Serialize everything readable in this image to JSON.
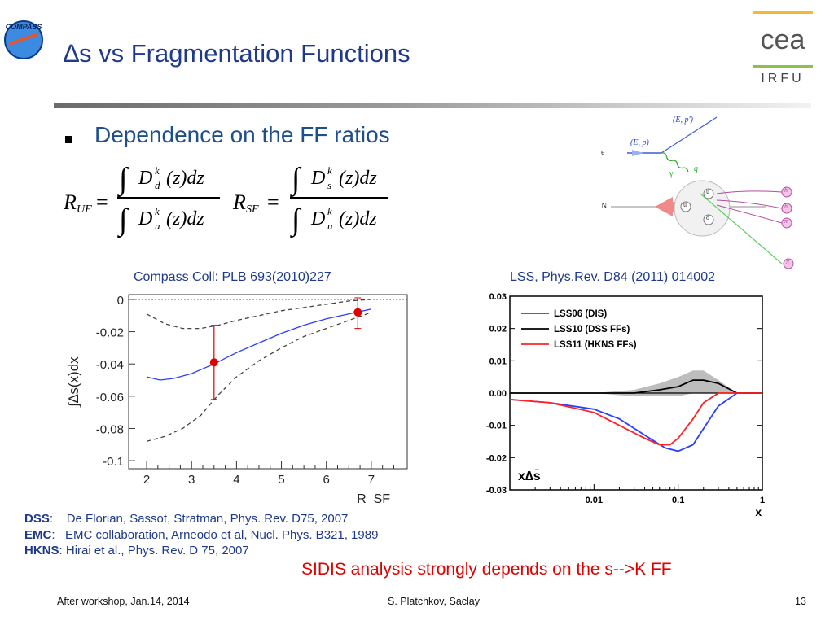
{
  "slide": {
    "title": "∆s vs Fragmentation Functions",
    "bullet": "Dependence on the FF ratios",
    "logo_left_text": "COMPASS",
    "logo_right_text": "IRFU",
    "logo_right_brand": "cea",
    "caption_left_prefix": "Compass Coll: ",
    "caption_left_ref": "PLB 693(2010)227",
    "caption_right": "LSS, Phys.Rev. D84 (2011) 014002",
    "refs": [
      {
        "key": "DSS",
        "sep": ":",
        "text": "De Florian, Sassot, Stratman, Phys. Rev. D75, 2007"
      },
      {
        "key": "EMC",
        "sep": ":",
        "text": "EMC collaboration, Arneodo et al, Nucl. Phys. B321, 1989"
      },
      {
        "key": "HKNS",
        "sep": ":",
        "text": "Hirai et al., Phys. Rev. D 75, 2007"
      }
    ],
    "conclusion": "SIDIS analysis strongly depends on the s-->K FF",
    "footer_left": "After workshop, Jan.14, 2014",
    "footer_center": "S. Platchkov, Saclay",
    "page_number": "13"
  },
  "formulas": {
    "ruf_label": "R",
    "ruf_sub": "UF",
    "rsf_label": "R",
    "rsf_sub": "SF",
    "equals": "=",
    "num_d": "D",
    "sub_d": "d",
    "sub_s": "s",
    "sub_u": "u",
    "sup_k": "k",
    "zdz": "(z)dz"
  },
  "diagram": {
    "labels": [
      "(E, p′)",
      "(E, p)",
      "e",
      "N",
      "γ",
      "q",
      "u",
      "d",
      "u",
      "h",
      "h",
      "π",
      "π"
    ]
  },
  "colors": {
    "title_blue": "#1f3a8a",
    "accent_red": "#e00000",
    "blue_curve": "#2a3fff",
    "red_curve": "#ff2222",
    "cea_green": "#8bc34a",
    "cea_orange": "#f7b733"
  },
  "chart_data": [
    {
      "type": "line",
      "xlabel": "R_SF",
      "ylabel": "∫∆s(x)dx",
      "xlim": [
        1.6,
        7.8
      ],
      "ylim": [
        -0.105,
        0.0
      ],
      "xticks": [
        "2",
        "3",
        "4",
        "5",
        "6",
        "7"
      ],
      "yticks": [
        "0",
        "-0.02",
        "-0.04",
        "-0.06",
        "-0.08",
        "-0.1"
      ],
      "grid": false,
      "series": [
        {
          "style": "blue-solid",
          "x": [
            2.0,
            2.3,
            2.6,
            3.0,
            3.5,
            4.0,
            4.5,
            5.0,
            5.5,
            6.0,
            6.5,
            7.0
          ],
          "y": [
            -0.048,
            -0.05,
            -0.049,
            -0.046,
            -0.04,
            -0.033,
            -0.027,
            -0.021,
            -0.016,
            -0.012,
            -0.009,
            -0.006
          ]
        },
        {
          "style": "dashed-upper",
          "x": [
            2.0,
            2.4,
            2.8,
            3.2,
            3.6,
            4.0,
            4.5,
            5.0,
            5.5,
            6.0,
            6.5,
            7.0
          ],
          "y": [
            -0.009,
            -0.015,
            -0.018,
            -0.018,
            -0.016,
            -0.013,
            -0.01,
            -0.007,
            -0.005,
            -0.003,
            -0.001,
            0.0
          ]
        },
        {
          "style": "dashed-lower",
          "x": [
            2.0,
            2.4,
            2.8,
            3.2,
            3.6,
            4.0,
            4.5,
            5.0,
            5.5,
            6.0,
            6.5,
            7.0
          ],
          "y": [
            -0.088,
            -0.085,
            -0.08,
            -0.072,
            -0.059,
            -0.048,
            -0.038,
            -0.03,
            -0.023,
            -0.018,
            -0.013,
            -0.008
          ]
        },
        {
          "style": "zero-line",
          "x": [
            1.6,
            7.8
          ],
          "y": [
            0,
            0
          ]
        }
      ],
      "points": [
        {
          "x": 3.5,
          "y": -0.039,
          "ylow": -0.062,
          "yhigh": -0.016
        },
        {
          "x": 6.7,
          "y": -0.008,
          "ylow": -0.018,
          "yhigh": 0.001
        }
      ]
    },
    {
      "type": "line",
      "xlabel": "x",
      "ylabel": "x∆s̄",
      "xscale": "log",
      "xlim": [
        0.001,
        1
      ],
      "ylim": [
        -0.03,
        0.03
      ],
      "xticks": [
        "0.01",
        "0.1",
        "1"
      ],
      "yticks": [
        "0.03",
        "0.02",
        "0.01",
        "0.00",
        "-0.01",
        "-0.02",
        "-0.03"
      ],
      "grid": false,
      "legend": "top-left",
      "series": [
        {
          "name": "LSS06 (DIS)",
          "color": "#2a3fff",
          "x": [
            0.001,
            0.003,
            0.01,
            0.02,
            0.04,
            0.07,
            0.1,
            0.15,
            0.2,
            0.3,
            0.5,
            0.7,
            1.0
          ],
          "y": [
            -0.002,
            -0.003,
            -0.005,
            -0.008,
            -0.013,
            -0.017,
            -0.018,
            -0.016,
            -0.011,
            -0.004,
            0.0,
            0.0,
            0.0
          ]
        },
        {
          "name": "LSS10 (DSS FFs)",
          "color": "#000000",
          "x": [
            0.001,
            0.01,
            0.03,
            0.06,
            0.1,
            0.15,
            0.2,
            0.3,
            0.5,
            0.7,
            1.0
          ],
          "y": [
            0.0,
            0.0,
            0.0,
            0.001,
            0.002,
            0.004,
            0.004,
            0.003,
            0.0,
            0.0,
            0.0
          ]
        },
        {
          "name": "LSS11 (HKNS FFs)",
          "color": "#ff2222",
          "x": [
            0.001,
            0.003,
            0.01,
            0.02,
            0.04,
            0.06,
            0.08,
            0.1,
            0.15,
            0.2,
            0.3,
            0.5,
            1.0
          ],
          "y": [
            -0.002,
            -0.003,
            -0.006,
            -0.01,
            -0.014,
            -0.016,
            -0.016,
            -0.014,
            -0.008,
            -0.003,
            0.0,
            0.0,
            0.0
          ]
        }
      ],
      "band": {
        "x": [
          0.01,
          0.03,
          0.06,
          0.1,
          0.15,
          0.2,
          0.3,
          0.5,
          0.7
        ],
        "upper": [
          0.0,
          0.001,
          0.003,
          0.005,
          0.007,
          0.007,
          0.004,
          0.0,
          0.0
        ],
        "lower": [
          0.0,
          -0.001,
          -0.001,
          -0.001,
          0.0,
          0.0,
          0.0,
          0.0,
          0.0
        ]
      }
    }
  ]
}
